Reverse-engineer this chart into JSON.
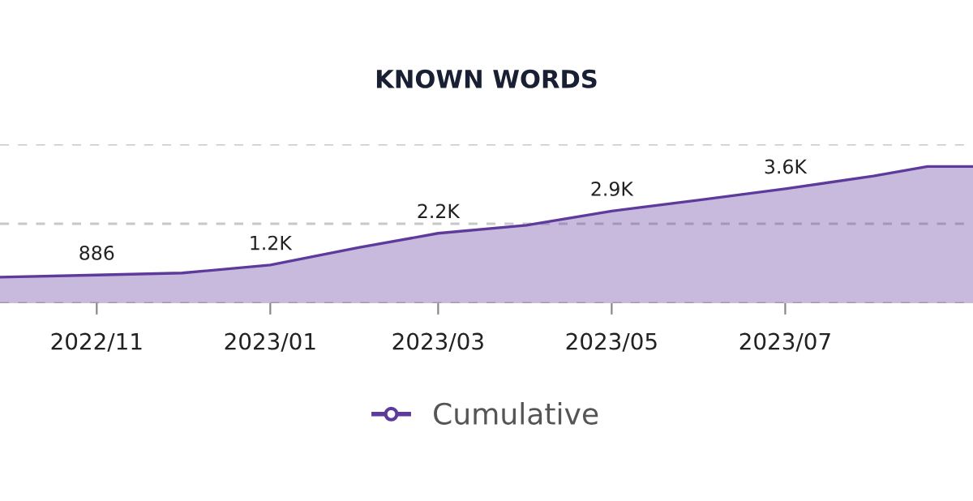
{
  "chart_data": {
    "type": "area",
    "title": "KNOWN WORDS",
    "x": [
      "2022-09-28",
      "2022-11-01",
      "2022-12-01",
      "2023-01-01",
      "2023-02-01",
      "2023-03-01",
      "2023-04-01",
      "2023-05-01",
      "2023-06-01",
      "2023-07-01",
      "2023-08-01",
      "2023-08-20",
      "2023-09-05"
    ],
    "series": [
      {
        "name": "Cumulative",
        "color": "#5e3a9c",
        "values": [
          820,
          886,
          950,
          1200,
          1750,
          2200,
          2450,
          2900,
          3250,
          3600,
          4000,
          4300,
          4300
        ],
        "value_labels": [
          null,
          "886",
          null,
          "1.2K",
          null,
          "2.2K",
          null,
          "2.9K",
          null,
          "3.6K",
          null,
          null,
          null
        ]
      }
    ],
    "xlim": [
      "2022-09-28",
      "2023-09-05"
    ],
    "xticks": [
      {
        "value": "2022-11-01",
        "label": "2022/11"
      },
      {
        "value": "2023-01-01",
        "label": "2023/01"
      },
      {
        "value": "2023-03-01",
        "label": "2023/03"
      },
      {
        "value": "2023-05-01",
        "label": "2023/05"
      },
      {
        "value": "2023-07-01",
        "label": "2023/07"
      }
    ],
    "ylim": [
      0,
      5000
    ],
    "yticks": [
      {
        "value": 0,
        "label": null
      },
      {
        "value": 2500,
        "label": null
      },
      {
        "value": 5000,
        "label": null
      }
    ],
    "tick_labels": "x",
    "grid": "y",
    "legend": "bottom"
  }
}
